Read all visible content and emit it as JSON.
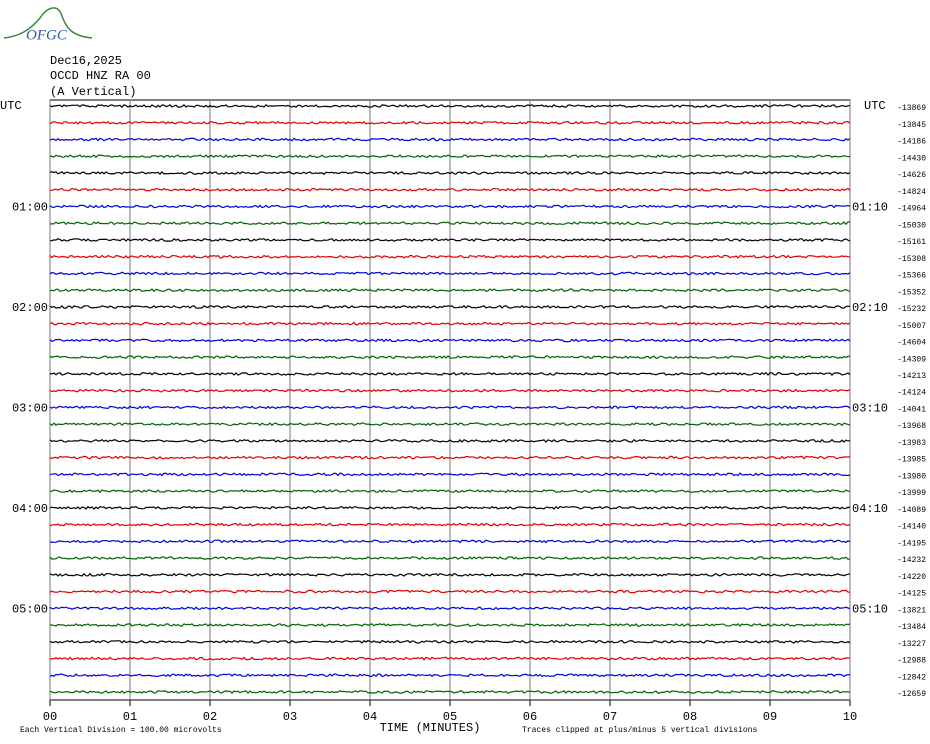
{
  "logo": "OFGC",
  "chart_data": {
    "type": "helicorder",
    "title_lines": [
      "Dec16,2025",
      "OCCD HNZ RA 00",
      "(A Vertical)"
    ],
    "left_axis_title": "UTC",
    "right_axis_title": "UTC",
    "categories": [
      null,
      null,
      null,
      null,
      null,
      null,
      "01:00",
      null,
      null,
      null,
      null,
      null,
      "02:00",
      null,
      null,
      null,
      null,
      null,
      "03:00",
      null,
      null,
      null,
      null,
      null,
      "04:00",
      null,
      null,
      null,
      null,
      null,
      "05:00",
      null,
      null,
      null,
      null,
      null
    ],
    "right_labels": [
      null,
      null,
      null,
      null,
      null,
      null,
      "01:10",
      null,
      null,
      null,
      null,
      null,
      "02:10",
      null,
      null,
      null,
      null,
      null,
      "03:10",
      null,
      null,
      null,
      null,
      null,
      "04:10",
      null,
      null,
      null,
      null,
      null,
      "05:10",
      null,
      null,
      null,
      null,
      null
    ],
    "values": [
      -13869,
      -13845,
      -14186,
      -14430,
      -14626,
      -14824,
      -14964,
      -15030,
      -15161,
      -15308,
      -15366,
      -15352,
      -15232,
      -15007,
      -14604,
      -14309,
      -14213,
      -14124,
      -14041,
      -13968,
      -13983,
      -13985,
      -13980,
      -13999,
      -14089,
      -14140,
      -14195,
      -14232,
      -14220,
      -14125,
      -13821,
      -13484,
      -13227,
      -12988,
      -12842,
      -12659
    ],
    "colors": [
      "#000000",
      "#e00000",
      "#0000d8",
      "#006400"
    ],
    "xlim": [
      0,
      10
    ],
    "xticks": [
      {
        "value": 0,
        "label": "00"
      },
      {
        "value": 1,
        "label": "01"
      },
      {
        "value": 2,
        "label": "02"
      },
      {
        "value": 3,
        "label": "03"
      },
      {
        "value": 4,
        "label": "04"
      },
      {
        "value": 5,
        "label": "05"
      },
      {
        "value": 6,
        "label": "06"
      },
      {
        "value": 7,
        "label": "07"
      },
      {
        "value": 8,
        "label": "08"
      },
      {
        "value": 9,
        "label": "09"
      },
      {
        "value": 10,
        "label": "10"
      }
    ],
    "x_label": "TIME (MINUTES)",
    "note_left": "Each Vertical Division =  100.00 microvolts",
    "note_right": "Traces clipped at plus/minus 5 vertical divisions",
    "grid": true
  }
}
